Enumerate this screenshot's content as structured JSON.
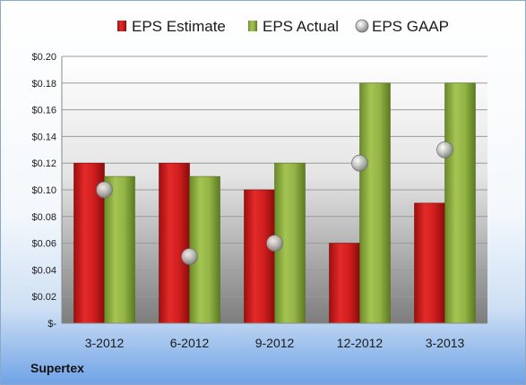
{
  "company": "Supertex",
  "chart_data": {
    "type": "bar",
    "categories": [
      "3-2012",
      "6-2012",
      "9-2012",
      "12-2012",
      "3-2013"
    ],
    "series": [
      {
        "name": "EPS Estimate",
        "kind": "bar",
        "color": "#d42020",
        "values": [
          0.12,
          0.12,
          0.1,
          0.06,
          0.09
        ]
      },
      {
        "name": "EPS Actual",
        "kind": "bar",
        "color": "#8fb040",
        "values": [
          0.11,
          0.11,
          0.12,
          0.18,
          0.18
        ]
      },
      {
        "name": "EPS GAAP",
        "kind": "scatter",
        "color": "#b8b8b8",
        "values": [
          0.1,
          0.05,
          0.06,
          0.12,
          0.13
        ]
      }
    ],
    "yticks": [
      "$-",
      "$0.02",
      "$0.04",
      "$0.06",
      "$0.08",
      "$0.10",
      "$0.12",
      "$0.14",
      "$0.16",
      "$0.18",
      "$0.20"
    ],
    "ylim": [
      0,
      0.2
    ],
    "grid": true,
    "legend": "top"
  }
}
